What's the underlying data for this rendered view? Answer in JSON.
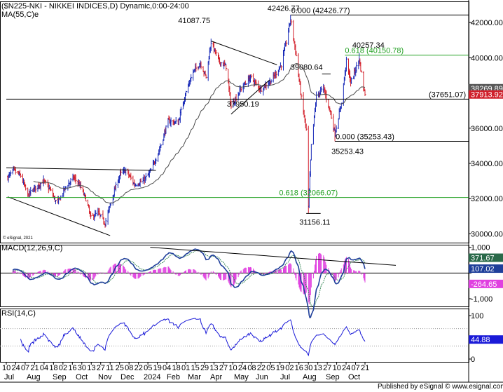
{
  "chart_data": {
    "type": "candlestick",
    "title": "($N225-NKI - NIKKEI INDICES,D) Dynamic,0:00-24:00",
    "ma_label": "MA(55,C)e",
    "source_mark": "© eSignal, 2021",
    "publisher": "Published by eSignal © www.esignal.com",
    "price_axis": {
      "range": [
        29500,
        43200
      ],
      "ticks": [
        30000,
        32000,
        34000,
        36000,
        38000,
        40000,
        42000
      ],
      "tick_labels": [
        "30000.00",
        "32000.00",
        "34000.00",
        "36000.00",
        "38000.00",
        "40000.00",
        "42000.00"
      ]
    },
    "price_boxes": [
      {
        "label": "38269.89",
        "value": 38269.89,
        "color": "#5a5a5a"
      },
      {
        "label": "37913.92",
        "value": 37913.92,
        "color": "#d0202b"
      }
    ],
    "levels": [
      {
        "value": 42426.77,
        "label": "0.000 (42426.77)",
        "color": "#000000"
      },
      {
        "value": 40150.78,
        "label": "0.618 (40150.78)",
        "color": "#22a022"
      },
      {
        "value": 37651.07,
        "label": "(37651.07)",
        "color": "#000000"
      },
      {
        "value": 35253.43,
        "label": "0.000 (35253.43)",
        "color": "#000000"
      },
      {
        "value": 32066.07,
        "label": "0.618 (32066.07)",
        "color": "#22a022"
      }
    ],
    "annotations": [
      {
        "text": "42426.77",
        "x": "2024-07-11",
        "value": 42426.77
      },
      {
        "text": "41087.75",
        "x": "2024-03-22",
        "value": 41087.75
      },
      {
        "text": "40257.34",
        "x": "2024-10-15",
        "value": 40257.34
      },
      {
        "text": "39080.64",
        "x": "2024-08-26",
        "value": 39080.64
      },
      {
        "text": "37950.19",
        "x": "2024-04-19",
        "value": 37950.19
      },
      {
        "text": "35253.43",
        "x": "2024-09-11",
        "value": 35253.43
      },
      {
        "text": "31156.11",
        "x": "2024-08-05",
        "value": 31156.11
      }
    ],
    "close_series": {
      "start_date": "2023-06-10",
      "points": [
        [
          "2023-06-10",
          33100
        ],
        [
          "2023-06-20",
          33600
        ],
        [
          "2023-06-30",
          33300
        ],
        [
          "2023-07-10",
          32200
        ],
        [
          "2023-07-20",
          32600
        ],
        [
          "2023-08-01",
          33000
        ],
        [
          "2023-08-10",
          32500
        ],
        [
          "2023-08-20",
          31700
        ],
        [
          "2023-08-31",
          32600
        ],
        [
          "2023-09-12",
          33200
        ],
        [
          "2023-09-20",
          32800
        ],
        [
          "2023-09-30",
          31900
        ],
        [
          "2023-10-06",
          30900
        ],
        [
          "2023-10-16",
          31200
        ],
        [
          "2023-10-26",
          30600
        ],
        [
          "2023-11-06",
          32200
        ],
        [
          "2023-11-16",
          33400
        ],
        [
          "2023-11-24",
          33600
        ],
        [
          "2023-12-06",
          32800
        ],
        [
          "2023-12-18",
          33000
        ],
        [
          "2023-12-28",
          33500
        ],
        [
          "2024-01-10",
          34800
        ],
        [
          "2024-01-22",
          36400
        ],
        [
          "2024-02-05",
          36300
        ],
        [
          "2024-02-14",
          37800
        ],
        [
          "2024-02-26",
          39200
        ],
        [
          "2024-03-07",
          39700
        ],
        [
          "2024-03-15",
          38900
        ],
        [
          "2024-03-22",
          40900
        ],
        [
          "2024-04-02",
          39800
        ],
        [
          "2024-04-12",
          39500
        ],
        [
          "2024-04-19",
          37200
        ],
        [
          "2024-05-02",
          38200
        ],
        [
          "2024-05-16",
          38900
        ],
        [
          "2024-05-30",
          38200
        ],
        [
          "2024-06-14",
          38700
        ],
        [
          "2024-06-28",
          39600
        ],
        [
          "2024-07-05",
          40900
        ],
        [
          "2024-07-11",
          42200
        ],
        [
          "2024-07-19",
          40100
        ],
        [
          "2024-07-26",
          37700
        ],
        [
          "2024-08-02",
          35900
        ],
        [
          "2024-08-05",
          31500
        ],
        [
          "2024-08-09",
          35000
        ],
        [
          "2024-08-16",
          37800
        ],
        [
          "2024-08-26",
          38300
        ],
        [
          "2024-09-04",
          37000
        ],
        [
          "2024-09-11",
          35700
        ],
        [
          "2024-09-19",
          37200
        ],
        [
          "2024-09-27",
          39800
        ],
        [
          "2024-10-03",
          38600
        ],
        [
          "2024-10-15",
          39900
        ],
        [
          "2024-10-21",
          38300
        ],
        [
          "2024-10-23",
          37913.92
        ]
      ]
    },
    "macd": {
      "label": "MACD(12,26,9,C)",
      "range": [
        -1300,
        1100
      ],
      "ticks": [
        1000,
        0,
        -1000
      ],
      "tick_labels": [
        "1,000",
        "0",
        "-1,000"
      ],
      "value_boxes": [
        {
          "label": "371.67",
          "value": 371.67,
          "color": "#2a6a4a"
        },
        {
          "label": "107.02",
          "value": 107.02,
          "color": "#1f3f9a"
        },
        {
          "label": "-264.65",
          "value": -264.65,
          "color": "#e040e0"
        }
      ]
    },
    "rsi": {
      "label": "RSI(14,C)",
      "range": [
        0,
        100
      ],
      "ticks": [
        100,
        0
      ],
      "tick_labels": [
        "100",
        "0"
      ],
      "value_box": {
        "label": "44.88",
        "value": 44.88,
        "color": "#1a1ad8"
      }
    },
    "x_axis": {
      "day_labels": [
        "10",
        "24",
        "07",
        "21",
        "04",
        "18",
        "02",
        "16",
        "30",
        "13",
        "27",
        "11",
        "25",
        "08",
        "22",
        "05",
        "19",
        "04",
        "18",
        "01",
        "15",
        "29",
        "13",
        "27",
        "10",
        "24",
        "08",
        "22",
        "05",
        "19",
        "02",
        "16",
        "30",
        "13",
        "27",
        "10",
        "24",
        "07",
        "21"
      ],
      "month_labels": [
        "Jul",
        "Aug",
        "Sep",
        "Oct",
        "Nov",
        "Dec",
        "2024",
        "Feb",
        "Mar",
        "Apr",
        "May",
        "Jun",
        "Jul",
        "Aug",
        "Sep",
        "Oct"
      ]
    },
    "grid": false
  },
  "colors": {
    "up_candle": "#1a2bb8",
    "down_candle": "#d3202b",
    "ma_line": "#4a4a4a",
    "macd_line": "#1f3f9a",
    "signal_line": "#3a8a5a",
    "histogram": "#e040e0",
    "rsi_line": "#1a1ad8",
    "fib_line": "#22a022"
  }
}
